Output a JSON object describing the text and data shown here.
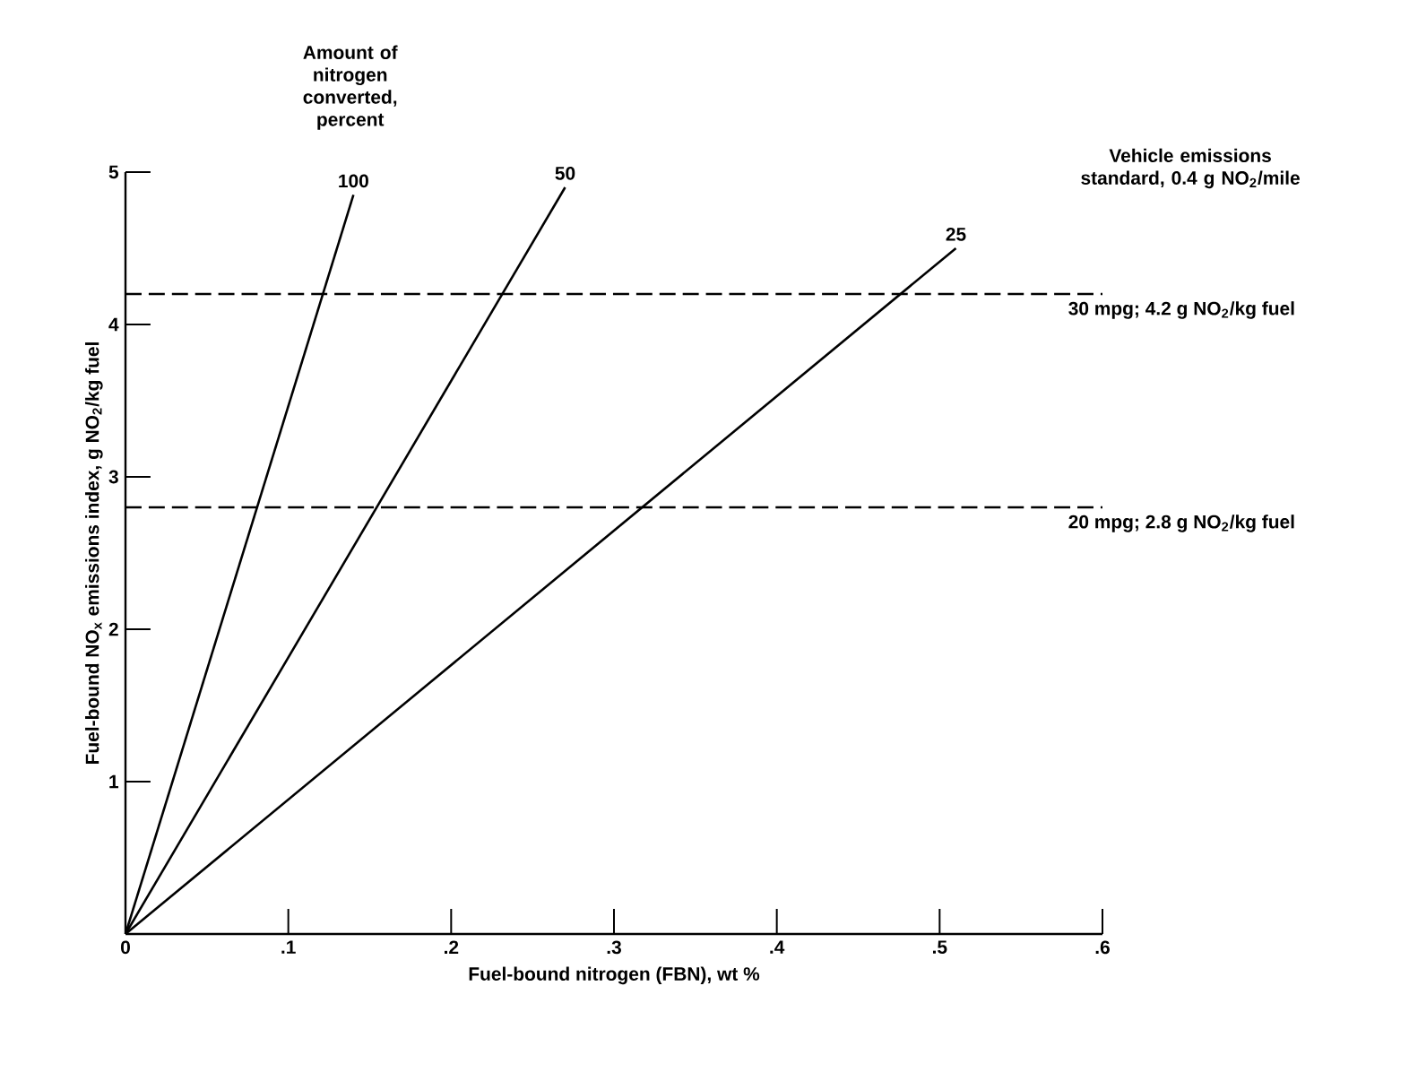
{
  "chart_data": {
    "type": "line",
    "xlabel": "Fuel-bound nitrogen (FBN), wt %",
    "ylabel": "Fuel-bound NO$_{x}$ emissions index, g NO$_{2}$/kg fuel",
    "xlim": [
      0,
      0.6
    ],
    "ylim": [
      0,
      5
    ],
    "xticks": [
      {
        "value": 0,
        "label": "0"
      },
      {
        "value": 0.1,
        "label": ".1"
      },
      {
        "value": 0.2,
        "label": ".2"
      },
      {
        "value": 0.3,
        "label": ".3"
      },
      {
        "value": 0.4,
        "label": ".4"
      },
      {
        "value": 0.5,
        "label": ".5"
      },
      {
        "value": 0.6,
        "label": ".6"
      }
    ],
    "yticks": [
      1,
      2,
      3,
      4,
      5
    ],
    "series": [
      {
        "name": "100",
        "color": "#000000",
        "x": [
          0,
          0.14
        ],
        "values": [
          0,
          4.85
        ]
      },
      {
        "name": "50",
        "color": "#000000",
        "x": [
          0,
          0.27
        ],
        "values": [
          0,
          4.9
        ]
      },
      {
        "name": "25",
        "color": "#000000",
        "x": [
          0,
          0.51
        ],
        "values": [
          0,
          4.5
        ]
      }
    ],
    "ref_lines": [
      {
        "axis": "y",
        "value": 4.2,
        "label": "30 mpg; 4.2 g NO$_{2}$/kg fuel",
        "line_style": "dashed",
        "color": "#000000"
      },
      {
        "axis": "y",
        "value": 2.8,
        "label": "20 mpg; 2.8 g NO$_{2}$/kg fuel",
        "line_style": "dashed",
        "color": "#000000"
      }
    ],
    "annotations": [
      "Amount of nitrogen converted, percent",
      "Vehicle emissions standard, 0.4 g NO$_{2}$/mile"
    ]
  }
}
